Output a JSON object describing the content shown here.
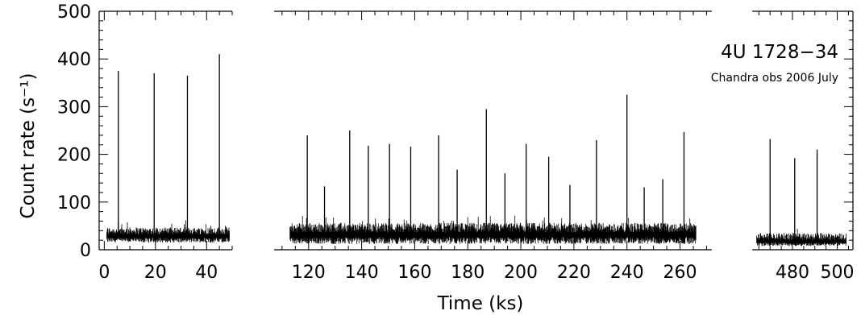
{
  "chart_data": {
    "type": "line",
    "title": "",
    "xlabel": "Time (ks)",
    "ylabel": "Count rate (s⁻¹)",
    "ylim": [
      0,
      500
    ],
    "y_ticks": [
      0,
      100,
      200,
      300,
      400,
      500
    ],
    "y_tick_labels": [
      "0",
      "100",
      "200",
      "300",
      "400",
      "500"
    ],
    "annotations": [
      "4U 1728−34",
      "Chandra obs 2006 July"
    ],
    "panels": [
      {
        "name": "segment-1",
        "xlim": [
          -2,
          50
        ],
        "x_ticks": [
          0,
          20,
          40
        ],
        "x_tick_labels": [
          "0",
          "20",
          "40"
        ],
        "data_span": [
          1,
          49
        ],
        "persistent_level": 32,
        "noise_range": [
          15,
          50
        ],
        "bursts": [
          {
            "t": 5.5,
            "peak": 375
          },
          {
            "t": 19.5,
            "peak": 370
          },
          {
            "t": 32.5,
            "peak": 365
          },
          {
            "t": 45,
            "peak": 410
          }
        ]
      },
      {
        "name": "segment-2",
        "xlim": [
          107,
          272
        ],
        "x_ticks": [
          120,
          140,
          160,
          180,
          200,
          220,
          240,
          260
        ],
        "x_tick_labels": [
          "120",
          "140",
          "160",
          "180",
          "200",
          "220",
          "240",
          "260"
        ],
        "data_span": [
          113,
          266
        ],
        "persistent_level": 36,
        "noise_range": [
          12,
          60
        ],
        "bursts": [
          {
            "t": 119.5,
            "peak": 240
          },
          {
            "t": 126,
            "peak": 133
          },
          {
            "t": 135.5,
            "peak": 250
          },
          {
            "t": 142.5,
            "peak": 218
          },
          {
            "t": 150.5,
            "peak": 222
          },
          {
            "t": 158.5,
            "peak": 216
          },
          {
            "t": 169,
            "peak": 240
          },
          {
            "t": 176,
            "peak": 168
          },
          {
            "t": 187,
            "peak": 295
          },
          {
            "t": 194,
            "peak": 160
          },
          {
            "t": 202,
            "peak": 222
          },
          {
            "t": 210.5,
            "peak": 195
          },
          {
            "t": 218.5,
            "peak": 136
          },
          {
            "t": 228.5,
            "peak": 230
          },
          {
            "t": 240,
            "peak": 325
          },
          {
            "t": 246.5,
            "peak": 131
          },
          {
            "t": 253.5,
            "peak": 148
          },
          {
            "t": 261.5,
            "peak": 247
          }
        ]
      },
      {
        "name": "segment-3",
        "xlim": [
          462,
          507
        ],
        "x_ticks": [
          480,
          500
        ],
        "x_tick_labels": [
          "480",
          "500"
        ],
        "data_span": [
          464,
          504
        ],
        "persistent_level": 20,
        "noise_range": [
          8,
          38
        ],
        "bursts": [
          {
            "t": 470,
            "peak": 232
          },
          {
            "t": 481,
            "peak": 192
          },
          {
            "t": 491,
            "peak": 210
          }
        ]
      }
    ]
  }
}
